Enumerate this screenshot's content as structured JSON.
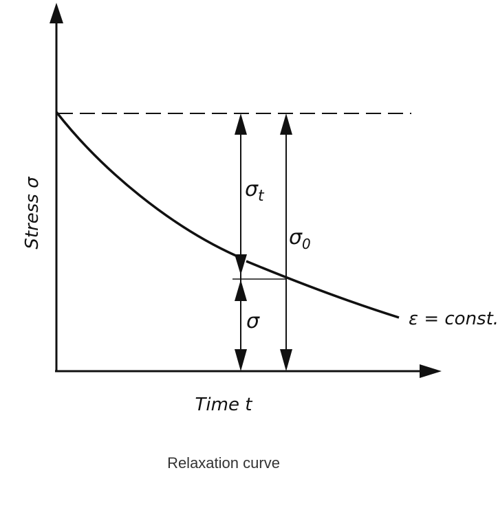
{
  "axes": {
    "y_label": "Stress σ",
    "x_label": "Time t"
  },
  "annotations": {
    "sigma_t": {
      "symbol": "σ",
      "subscript": "t"
    },
    "sigma_0": {
      "symbol": "σ",
      "subscript": "0"
    },
    "sigma": "σ",
    "curve_label": "ε = const."
  },
  "caption": "Relaxation curve"
}
